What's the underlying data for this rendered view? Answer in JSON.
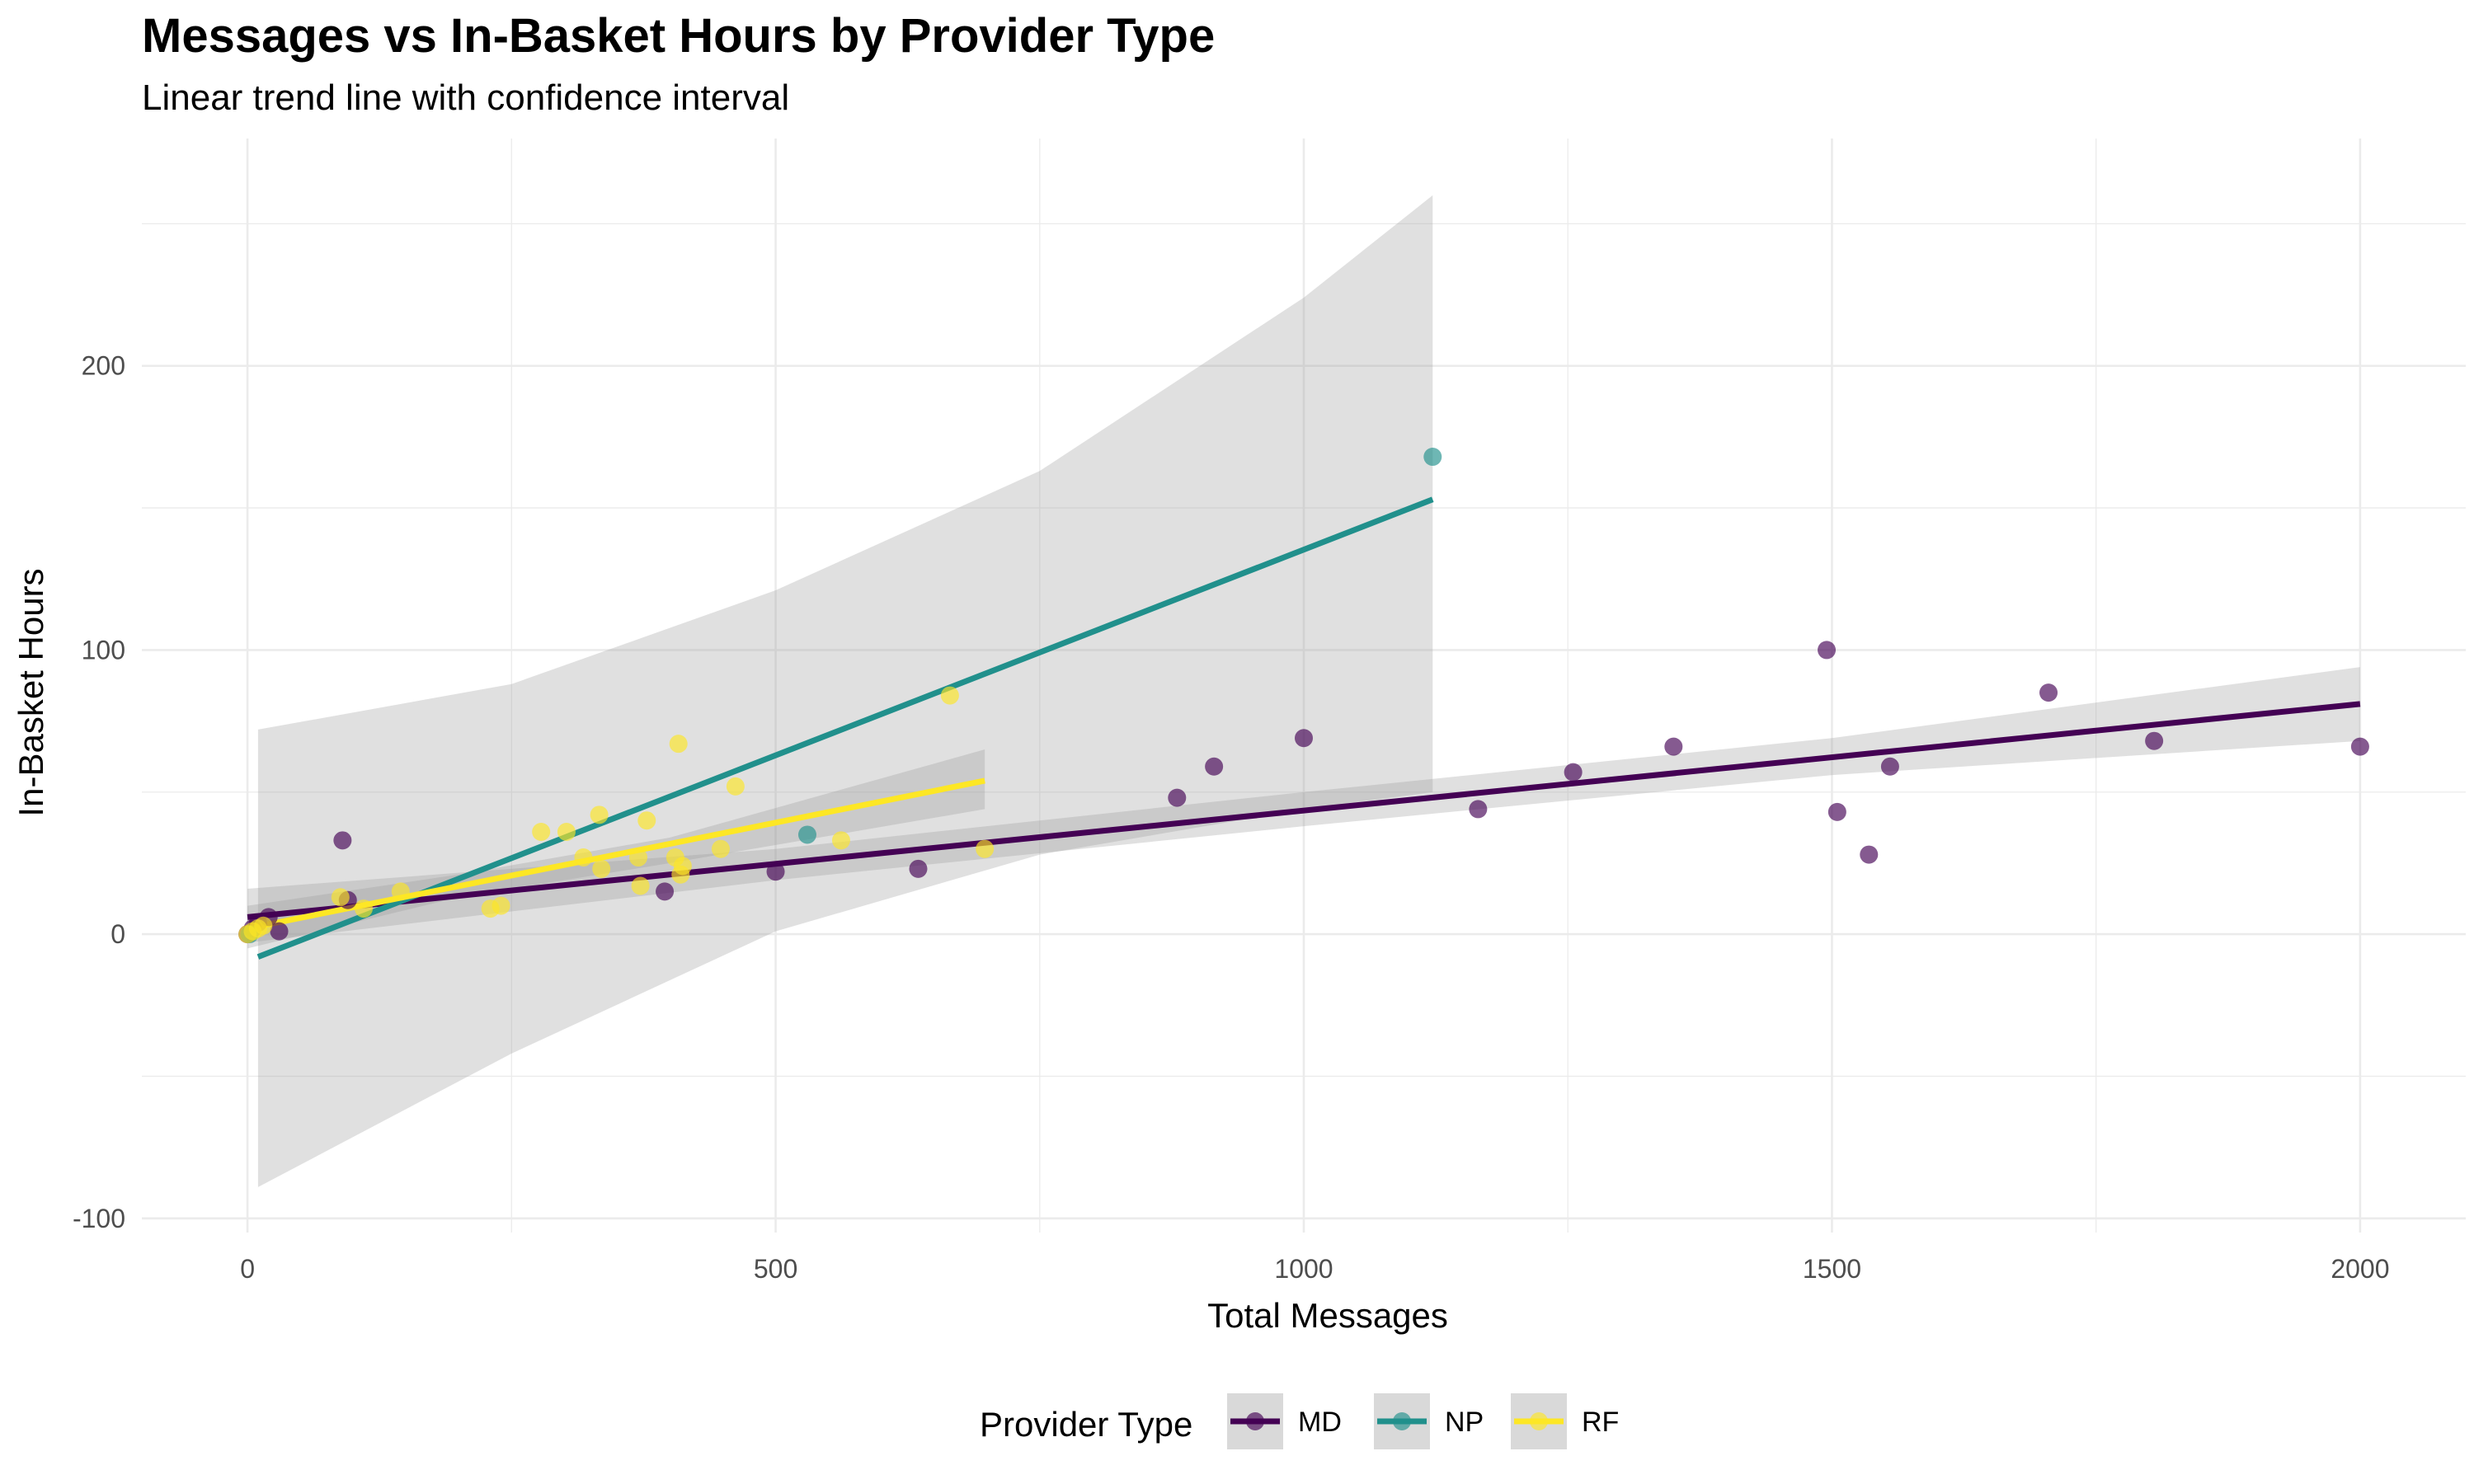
{
  "chart_data": {
    "type": "scatter",
    "title": "Messages vs In-Basket Hours by Provider Type",
    "subtitle": "Linear trend line with confidence interval",
    "xlabel": "Total Messages",
    "ylabel": "In-Basket Hours",
    "xlim": [
      -100,
      2100
    ],
    "ylim": [
      -105,
      280
    ],
    "x_ticks": [
      0,
      500,
      1000,
      1500,
      2000
    ],
    "y_ticks": [
      -100,
      0,
      100,
      200
    ],
    "grid": true,
    "legend_title": "Provider Type",
    "legend_position": "bottom",
    "series": [
      {
        "name": "MD",
        "color": "#440154",
        "points": [
          {
            "x": 0,
            "y": 0
          },
          {
            "x": 5,
            "y": 2
          },
          {
            "x": 10,
            "y": 4
          },
          {
            "x": 20,
            "y": 6
          },
          {
            "x": 30,
            "y": 1
          },
          {
            "x": 90,
            "y": 33
          },
          {
            "x": 95,
            "y": 12
          },
          {
            "x": 395,
            "y": 15
          },
          {
            "x": 500,
            "y": 22
          },
          {
            "x": 635,
            "y": 23
          },
          {
            "x": 880,
            "y": 48
          },
          {
            "x": 915,
            "y": 59
          },
          {
            "x": 1000,
            "y": 69
          },
          {
            "x": 1165,
            "y": 44
          },
          {
            "x": 1255,
            "y": 57
          },
          {
            "x": 1350,
            "y": 66
          },
          {
            "x": 1495,
            "y": 100
          },
          {
            "x": 1505,
            "y": 43
          },
          {
            "x": 1535,
            "y": 28
          },
          {
            "x": 1555,
            "y": 59
          },
          {
            "x": 1705,
            "y": 85
          },
          {
            "x": 1805,
            "y": 68
          },
          {
            "x": 2000,
            "y": 66
          }
        ],
        "trend": {
          "x0": 0,
          "y0": 6,
          "x1": 2000,
          "y1": 81
        },
        "ci": [
          {
            "x": 0,
            "lo": -3,
            "hi": 16
          },
          {
            "x": 500,
            "lo": 19,
            "hi": 30
          },
          {
            "x": 1000,
            "lo": 38,
            "hi": 50
          },
          {
            "x": 1500,
            "lo": 56,
            "hi": 69
          },
          {
            "x": 2000,
            "lo": 68,
            "hi": 94
          }
        ]
      },
      {
        "name": "NP",
        "color": "#21908C",
        "points": [
          {
            "x": 2,
            "y": 0
          },
          {
            "x": 530,
            "y": 35
          },
          {
            "x": 1122,
            "y": 168
          }
        ],
        "trend": {
          "x0": 10,
          "y0": -8,
          "x1": 1122,
          "y1": 153
        },
        "ci": [
          {
            "x": 10,
            "lo": -89,
            "hi": 72
          },
          {
            "x": 250,
            "lo": -42,
            "hi": 88
          },
          {
            "x": 500,
            "lo": 1,
            "hi": 121
          },
          {
            "x": 750,
            "lo": 28,
            "hi": 163
          },
          {
            "x": 1000,
            "lo": 44,
            "hi": 224
          },
          {
            "x": 1122,
            "lo": 50,
            "hi": 260
          }
        ]
      },
      {
        "name": "RF",
        "color": "#FDE725",
        "points": [
          {
            "x": 0,
            "y": 0
          },
          {
            "x": 5,
            "y": 1
          },
          {
            "x": 10,
            "y": 2
          },
          {
            "x": 15,
            "y": 3
          },
          {
            "x": 88,
            "y": 13
          },
          {
            "x": 110,
            "y": 9
          },
          {
            "x": 145,
            "y": 15
          },
          {
            "x": 230,
            "y": 9
          },
          {
            "x": 240,
            "y": 10
          },
          {
            "x": 278,
            "y": 36
          },
          {
            "x": 302,
            "y": 36
          },
          {
            "x": 318,
            "y": 27
          },
          {
            "x": 333,
            "y": 42
          },
          {
            "x": 335,
            "y": 23
          },
          {
            "x": 370,
            "y": 27
          },
          {
            "x": 372,
            "y": 17
          },
          {
            "x": 378,
            "y": 40
          },
          {
            "x": 405,
            "y": 27
          },
          {
            "x": 408,
            "y": 67
          },
          {
            "x": 410,
            "y": 21
          },
          {
            "x": 412,
            "y": 24
          },
          {
            "x": 448,
            "y": 30
          },
          {
            "x": 462,
            "y": 52
          },
          {
            "x": 562,
            "y": 33
          },
          {
            "x": 665,
            "y": 84
          },
          {
            "x": 698,
            "y": 30
          }
        ],
        "trend": {
          "x0": 0,
          "y0": 2,
          "x1": 698,
          "y1": 54
        },
        "ci": [
          {
            "x": 0,
            "lo": -5,
            "hi": 10
          },
          {
            "x": 200,
            "lo": 13,
            "hi": 21
          },
          {
            "x": 400,
            "lo": 25,
            "hi": 34
          },
          {
            "x": 698,
            "lo": 44,
            "hi": 65
          }
        ]
      }
    ]
  }
}
